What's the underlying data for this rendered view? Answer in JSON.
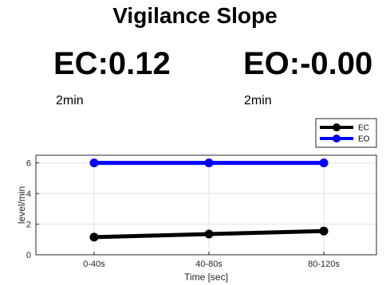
{
  "header": {
    "title": "Vigilance Slope",
    "ec_value": "EC:0.12",
    "eo_value": "EO:-0.00",
    "ec_duration": "2min",
    "eo_duration": "2min"
  },
  "chart_data": {
    "type": "line",
    "title": "",
    "xlabel": "Time [sec]",
    "ylabel": "level/min",
    "categories": [
      "0-40s",
      "40-80s",
      "80-120s"
    ],
    "ylim": [
      0,
      6.5
    ],
    "yticks": [
      0,
      2,
      4,
      6
    ],
    "grid": true,
    "legend_position": "top-right",
    "series": [
      {
        "name": "EC",
        "color": "#000000",
        "values": [
          1.15,
          1.35,
          1.55
        ]
      },
      {
        "name": "EO",
        "color": "#0000ff",
        "values": [
          6.0,
          6.0,
          6.0
        ]
      }
    ]
  }
}
